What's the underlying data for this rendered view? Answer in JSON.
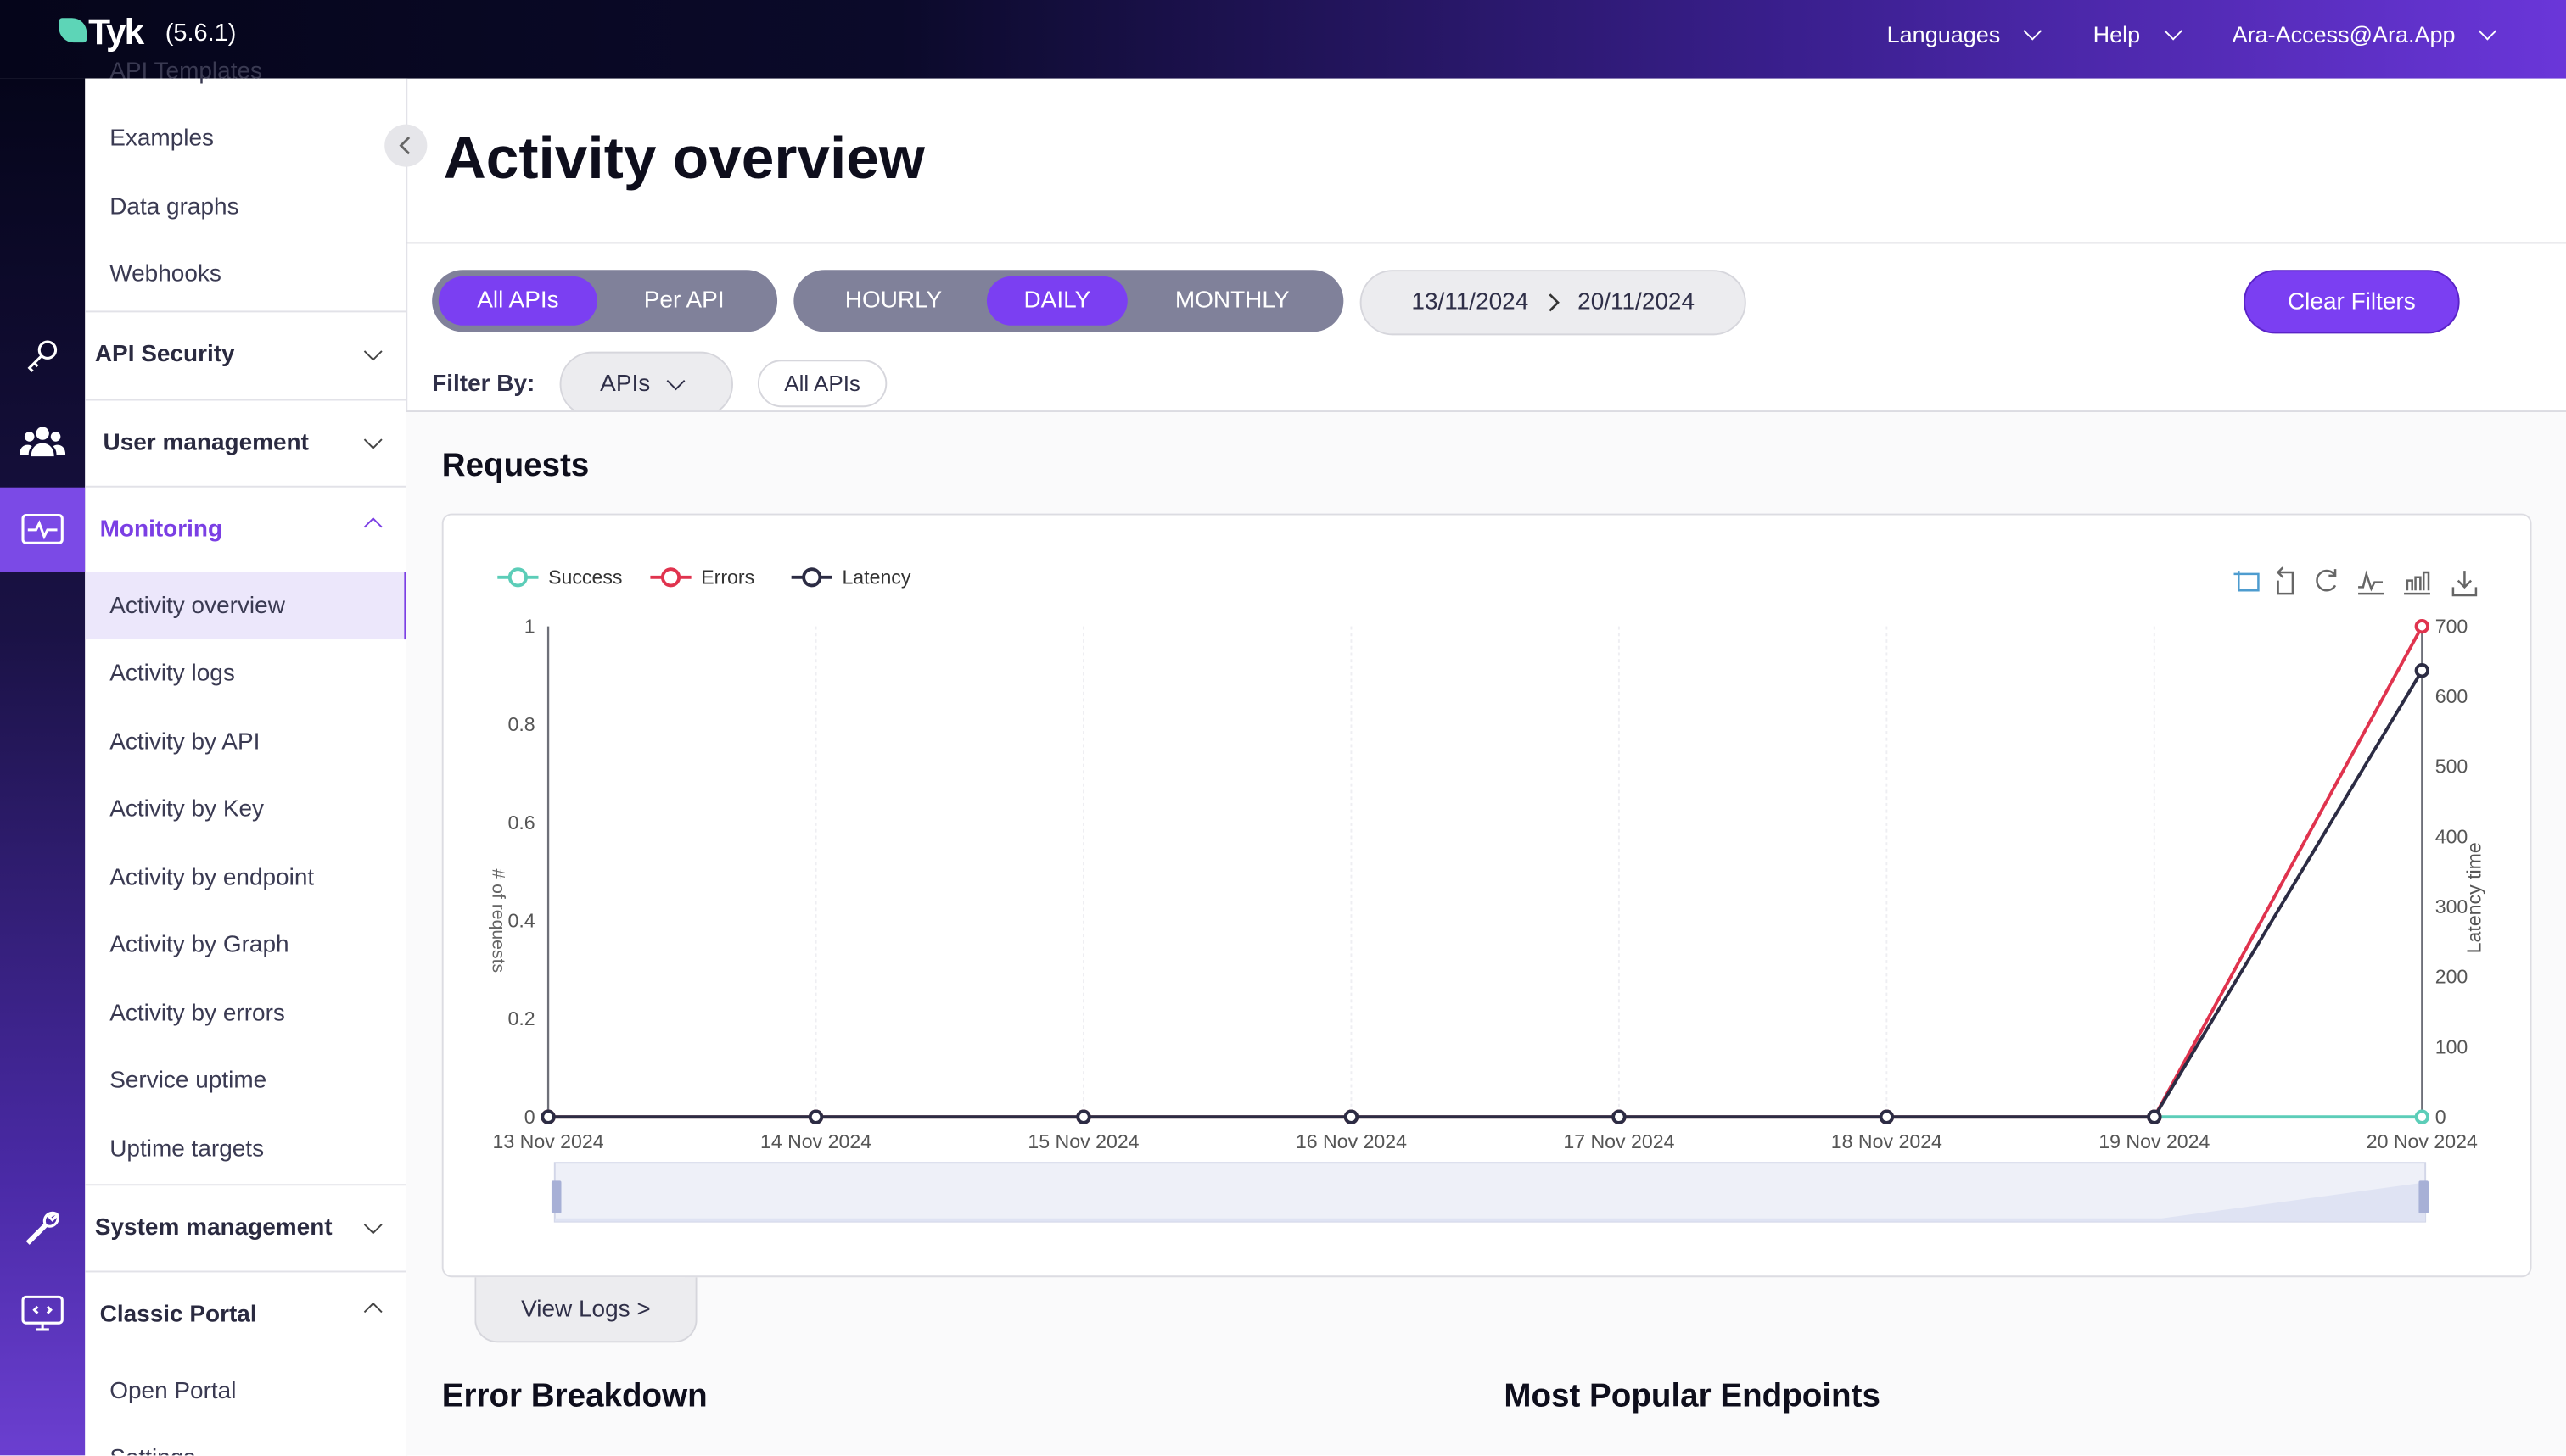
{
  "header": {
    "logo_text": "Tyk",
    "version": "(5.6.1)",
    "nav": [
      {
        "label": "Languages"
      },
      {
        "label": "Help"
      },
      {
        "label": "Ara-Access@Ara.App"
      }
    ]
  },
  "sidebar": {
    "cut_off_item": "API Templates",
    "top_items": [
      {
        "label": "Examples"
      },
      {
        "label": "Data graphs"
      },
      {
        "label": "Webhooks"
      }
    ],
    "groups": {
      "api_security": "API Security",
      "user_management": "User management",
      "monitoring": "Monitoring",
      "system_management": "System management",
      "classic_portal": "Classic Portal"
    },
    "monitoring_items": [
      {
        "label": "Activity overview",
        "active": true
      },
      {
        "label": "Activity logs"
      },
      {
        "label": "Activity by API"
      },
      {
        "label": "Activity by Key"
      },
      {
        "label": "Activity by endpoint"
      },
      {
        "label": "Activity by Graph"
      },
      {
        "label": "Activity by errors"
      },
      {
        "label": "Service uptime"
      },
      {
        "label": "Uptime targets"
      }
    ],
    "portal_items": [
      {
        "label": "Open Portal"
      },
      {
        "label": "Settings"
      }
    ],
    "accent": "#7b3fe4"
  },
  "page": {
    "title": "Activity overview",
    "scope_toggle": [
      {
        "label": "All APIs",
        "active": true
      },
      {
        "label": "Per API"
      }
    ],
    "interval_toggle": [
      {
        "label": "HOURLY"
      },
      {
        "label": "DAILY",
        "active": true
      },
      {
        "label": "MONTHLY"
      }
    ],
    "date_from": "13/11/2024",
    "date_to": "20/11/2024",
    "clear_filters": "Clear Filters",
    "filter_by_label": "Filter By:",
    "filter_select": "APIs",
    "filter_chip": "All APIs",
    "requests_title": "Requests",
    "view_logs": "View Logs >",
    "error_breakdown_title": "Error Breakdown",
    "popular_endpoints_title": "Most Popular Endpoints"
  },
  "chart_data": {
    "type": "line",
    "categories": [
      "13 Nov 2024",
      "14 Nov 2024",
      "15 Nov 2024",
      "16 Nov 2024",
      "17 Nov 2024",
      "18 Nov 2024",
      "19 Nov 2024",
      "20 Nov 2024"
    ],
    "ylabel": "# of requests",
    "y2label": "Latency time",
    "ylim": [
      0,
      1
    ],
    "y2lim": [
      0,
      700
    ],
    "yticks": [
      "0",
      "0.2",
      "0.4",
      "0.6",
      "0.8",
      "1"
    ],
    "y2ticks": [
      "0",
      "100",
      "200",
      "300",
      "400",
      "500",
      "600",
      "700"
    ],
    "legend_position": "top-left",
    "series": [
      {
        "name": "Success",
        "axis": "left",
        "color": "#5ccdb8",
        "values": [
          0,
          0,
          0,
          0,
          0,
          0,
          0,
          0
        ]
      },
      {
        "name": "Errors",
        "axis": "left",
        "color": "#e0334e",
        "values": [
          0,
          0,
          0,
          0,
          0,
          0,
          0,
          1
        ]
      },
      {
        "name": "Latency",
        "axis": "right",
        "color": "#2c2c44",
        "values": [
          0,
          0,
          0,
          0,
          0,
          0,
          0,
          637
        ]
      }
    ],
    "toolbox": [
      "zoom-icon",
      "zoom-reset-icon",
      "restore-icon",
      "line-chart-icon",
      "bar-chart-icon",
      "download-icon"
    ]
  }
}
